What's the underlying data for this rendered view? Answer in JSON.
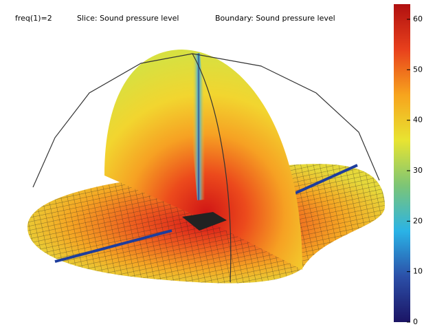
{
  "title": {
    "freq": "freq(1)=2",
    "slice": "Slice: Sound pressure level",
    "boundary": "Boundary: Sound pressure level"
  },
  "colorbar": {
    "lim": [
      0,
      63
    ],
    "ticks": [
      0,
      10,
      20,
      30,
      40,
      50,
      60
    ],
    "colors": [
      "#1b1464",
      "#2b4fa8",
      "#2ab3e6",
      "#7cc576",
      "#e8e431",
      "#f7a41d",
      "#e8401c",
      "#b01010"
    ]
  }
}
